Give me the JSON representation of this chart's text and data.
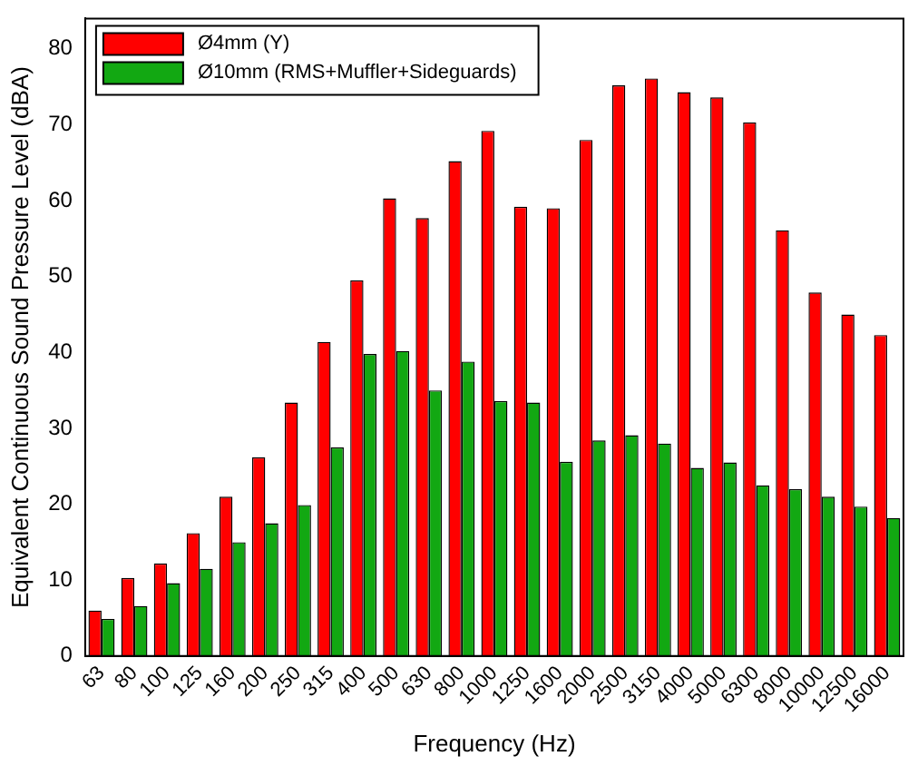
{
  "chart_data": {
    "type": "bar",
    "xlabel": "Frequency (Hz)",
    "ylabel": "Equivalent Continuous Sound Pressure Level (dBA)",
    "categories": [
      "63",
      "80",
      "100",
      "125",
      "160",
      "200",
      "250",
      "315",
      "400",
      "500",
      "630",
      "800",
      "1000",
      "1250",
      "1600",
      "2000",
      "2500",
      "3150",
      "4000",
      "5000",
      "6300",
      "8000",
      "10000",
      "12500",
      "16000"
    ],
    "series": [
      {
        "name": "Ø4mm (Y)",
        "color": "#ff0000",
        "values": [
          6,
          10.3,
          12.2,
          16.2,
          21,
          26.2,
          33.4,
          41.4,
          49.5,
          60.3,
          57.7,
          65.2,
          69.2,
          59.2,
          59,
          68,
          75.2,
          76.1,
          74.3,
          73.6,
          70.3,
          56.1,
          47.9,
          45,
          42.3
        ]
      },
      {
        "name": "Ø10mm (RMS+Muffler+Sideguards)",
        "color": "#12a812",
        "values": [
          4.9,
          6.6,
          9.6,
          11.5,
          15,
          17.5,
          19.9,
          27.5,
          39.8,
          40.2,
          35,
          38.8,
          33.6,
          33.4,
          25.6,
          28.4,
          29.1,
          28,
          24.8,
          25.5,
          22.5,
          22,
          21,
          19.7,
          18.2
        ]
      }
    ],
    "ylim": [
      0,
      84
    ],
    "yticks": [
      0,
      10,
      20,
      30,
      40,
      50,
      60,
      70,
      80
    ],
    "grid": false,
    "legend": "top left"
  }
}
